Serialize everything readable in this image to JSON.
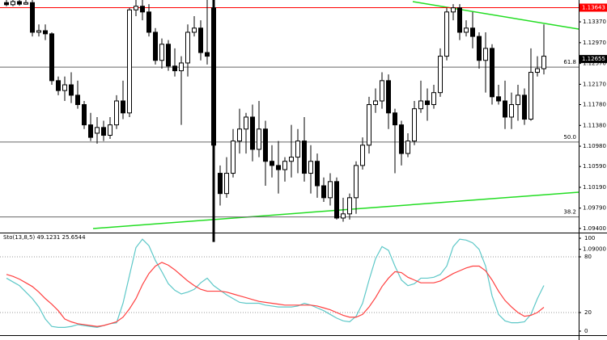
{
  "chart_data": [
    {
      "type": "candlestick",
      "ohlc": [
        [
          1.1374,
          1.1379,
          1.1367,
          1.137
        ],
        [
          1.137,
          1.1379,
          1.1367,
          1.1376
        ],
        [
          1.1376,
          1.1379,
          1.1368,
          1.1371
        ],
        [
          1.1371,
          1.1379,
          1.137,
          1.1374
        ],
        [
          1.1374,
          1.1379,
          1.1309,
          1.1317
        ],
        [
          1.1317,
          1.1332,
          1.1309,
          1.132
        ],
        [
          1.132,
          1.1332,
          1.1302,
          1.1314
        ],
        [
          1.1314,
          1.1317,
          1.1216,
          1.1224
        ],
        [
          1.1224,
          1.1232,
          1.1196,
          1.1205
        ],
        [
          1.1205,
          1.1232,
          1.1185,
          1.1216
        ],
        [
          1.1216,
          1.124,
          1.1181,
          1.1196
        ],
        [
          1.1196,
          1.1224,
          1.117,
          1.1178
        ],
        [
          1.1178,
          1.1185,
          1.1131,
          1.1139
        ],
        [
          1.1139,
          1.1162,
          1.1108,
          1.1115
        ],
        [
          1.1123,
          1.1154,
          1.1103,
          1.1134
        ],
        [
          1.1134,
          1.1147,
          1.1108,
          1.1119
        ],
        [
          1.1119,
          1.1154,
          1.1112,
          1.1139
        ],
        [
          1.1139,
          1.1196,
          1.1131,
          1.1185
        ],
        [
          1.1185,
          1.1224,
          1.115,
          1.1162
        ],
        [
          1.1162,
          1.1364,
          1.1154,
          1.136
        ],
        [
          1.136,
          1.1379,
          1.1348,
          1.1367
        ],
        [
          1.1367,
          1.1379,
          1.134,
          1.1356
        ],
        [
          1.1356,
          1.1371,
          1.1309,
          1.1317
        ],
        [
          1.1317,
          1.1325,
          1.1255,
          1.1263
        ],
        [
          1.1263,
          1.1305,
          1.1247,
          1.1294
        ],
        [
          1.1294,
          1.1302,
          1.1243,
          1.1252
        ],
        [
          1.1252,
          1.1286,
          1.1232,
          1.1243
        ],
        [
          1.1243,
          1.1271,
          1.1139,
          1.1258
        ],
        [
          1.1258,
          1.1332,
          1.1232,
          1.1317
        ],
        [
          1.1317,
          1.1348,
          1.1309,
          1.1325
        ],
        [
          1.1325,
          1.134,
          1.1263,
          1.1278
        ],
        [
          1.1278,
          1.1379,
          1.1255,
          1.1271
        ],
        [
          1.1364,
          1.1379,
          1.0914,
          1.11
        ],
        [
          1.1046,
          1.1061,
          1.0984,
          1.1007
        ],
        [
          1.1007,
          1.1077,
          1.0999,
          1.1046
        ],
        [
          1.1046,
          1.1131,
          1.1038,
          1.1108
        ],
        [
          1.1108,
          1.117,
          1.1084,
          1.1131
        ],
        [
          1.1131,
          1.1162,
          1.1084,
          1.1154
        ],
        [
          1.1154,
          1.1178,
          1.1069,
          1.1092
        ],
        [
          1.1092,
          1.1185,
          1.1077,
          1.1131
        ],
        [
          1.1131,
          1.1147,
          1.1022,
          1.1069
        ],
        [
          1.1069,
          1.11,
          1.1038,
          1.1061
        ],
        [
          1.1061,
          1.1108,
          1.1007,
          1.1053
        ],
        [
          1.1053,
          1.1077,
          1.103,
          1.1069
        ],
        [
          1.1069,
          1.1139,
          1.1038,
          1.1077
        ],
        [
          1.1077,
          1.1131,
          1.1046,
          1.1108
        ],
        [
          1.1108,
          1.1154,
          1.103,
          1.1046
        ],
        [
          1.1046,
          1.11,
          1.1007,
          1.1069
        ],
        [
          1.1069,
          1.1084,
          1.0999,
          1.1022
        ],
        [
          1.1022,
          1.1038,
          1.0991,
          1.0999
        ],
        [
          1.0999,
          1.1046,
          1.0984,
          1.103
        ],
        [
          1.103,
          1.1038,
          1.0957,
          1.096
        ],
        [
          1.096,
          1.0999,
          1.0953,
          1.0968
        ],
        [
          1.0968,
          1.1007,
          1.0957,
          1.0999
        ],
        [
          1.0999,
          1.1069,
          1.0968,
          1.1061
        ],
        [
          1.1061,
          1.1115,
          1.1053,
          1.11
        ],
        [
          1.11,
          1.1193,
          1.1084,
          1.1178
        ],
        [
          1.1178,
          1.1209,
          1.1162,
          1.1185
        ],
        [
          1.1185,
          1.124,
          1.117,
          1.1224
        ],
        [
          1.1224,
          1.1236,
          1.1131,
          1.1162
        ],
        [
          1.1162,
          1.117,
          1.1046,
          1.1139
        ],
        [
          1.1139,
          1.1147,
          1.1061,
          1.1084
        ],
        [
          1.1084,
          1.1123,
          1.1077,
          1.1108
        ],
        [
          1.1108,
          1.1185,
          1.11,
          1.117
        ],
        [
          1.117,
          1.1224,
          1.1162,
          1.1185
        ],
        [
          1.1185,
          1.1209,
          1.1147,
          1.1178
        ],
        [
          1.1178,
          1.1216,
          1.117,
          1.1201
        ],
        [
          1.1201,
          1.1286,
          1.1193,
          1.1271
        ],
        [
          1.1271,
          1.1364,
          1.1263,
          1.1356
        ],
        [
          1.1356,
          1.1371,
          1.134,
          1.1364
        ],
        [
          1.1364,
          1.1371,
          1.1302,
          1.1317
        ],
        [
          1.1317,
          1.134,
          1.1309,
          1.1325
        ],
        [
          1.1325,
          1.1356,
          1.1286,
          1.1309
        ],
        [
          1.1309,
          1.1317,
          1.1247,
          1.1263
        ],
        [
          1.1263,
          1.1317,
          1.1201,
          1.1286
        ],
        [
          1.1286,
          1.1294,
          1.1178,
          1.1193
        ],
        [
          1.1193,
          1.1216,
          1.1178,
          1.1185
        ],
        [
          1.1185,
          1.1224,
          1.1131,
          1.1154
        ],
        [
          1.1154,
          1.1201,
          1.1131,
          1.1178
        ],
        [
          1.1178,
          1.1216,
          1.1147,
          1.1196
        ],
        [
          1.1196,
          1.1209,
          1.1139,
          1.115
        ],
        [
          1.115,
          1.1286,
          1.1147,
          1.124
        ],
        [
          1.124,
          1.1271,
          1.1232,
          1.1247
        ],
        [
          1.1247,
          1.1332,
          1.1236,
          1.1271
        ]
      ],
      "up_color": "#ffffff",
      "down_color": "#000000",
      "ylim": [
        1.0932,
        1.1379
      ],
      "yticks": [
        {
          "value": 1.1337,
          "label": "1.13370"
        },
        {
          "value": 1.1297,
          "label": "1.12970"
        },
        {
          "value": 1.1257,
          "label": "1.12570"
        },
        {
          "value": 1.1217,
          "label": "1.12170"
        },
        {
          "value": 1.1178,
          "label": "1.11780"
        },
        {
          "value": 1.1138,
          "label": "1.11380"
        },
        {
          "value": 1.1098,
          "label": "1.10980"
        },
        {
          "value": 1.1059,
          "label": "1.10590"
        },
        {
          "value": 1.1019,
          "label": "1.10190"
        },
        {
          "value": 1.0979,
          "label": "1.09790"
        },
        {
          "value": 1.094,
          "label": "1.09400"
        },
        {
          "value": 1.09,
          "label": "1.09000"
        }
      ],
      "levels": [
        {
          "label": "61.8",
          "value": 1.125
        },
        {
          "label": "50.0",
          "value": 1.1106
        },
        {
          "label": "38.2",
          "value": 1.0962
        }
      ],
      "marked_price": 1.13643,
      "marked_color": "#ff0000",
      "last_price": 1.12655
    },
    {
      "type": "line",
      "title": "Sto(13,8,5)",
      "series": [
        {
          "color": "#5ec8c8",
          "values": [
            57,
            53,
            49,
            42,
            35,
            26,
            13,
            5,
            4,
            4,
            5,
            7,
            6,
            5,
            4,
            6,
            8,
            9,
            30,
            60,
            90,
            99,
            92,
            76,
            64,
            51,
            44,
            40,
            42,
            45,
            52,
            57,
            49,
            44,
            39,
            35,
            31,
            30,
            30,
            30,
            28,
            27,
            26,
            26,
            26,
            27,
            30,
            28,
            25,
            22,
            18,
            14,
            11,
            10,
            16,
            30,
            55,
            78,
            91,
            87,
            70,
            55,
            49,
            51,
            57,
            57,
            58,
            61,
            70,
            91,
            99,
            98,
            95,
            88,
            70,
            38,
            18,
            11,
            9,
            9,
            10,
            18,
            35,
            49.1231
          ]
        },
        {
          "color": "#ff4040",
          "values": [
            61,
            59,
            56,
            52,
            48,
            42,
            35,
            29,
            22,
            13,
            10,
            8,
            7,
            6,
            5,
            6,
            8,
            10,
            15,
            24,
            35,
            50,
            62,
            70,
            74,
            71,
            66,
            60,
            54,
            49,
            45,
            43,
            43,
            43,
            42,
            40,
            38,
            36,
            34,
            32,
            31,
            30,
            29,
            28,
            28,
            28,
            28,
            28,
            27,
            25,
            23,
            20,
            17,
            15,
            15,
            18,
            26,
            36,
            48,
            57,
            64,
            63,
            58,
            55,
            52,
            52,
            52,
            54,
            58,
            62,
            65,
            68,
            70,
            70,
            65,
            55,
            43,
            33,
            26,
            20,
            16,
            17,
            20,
            25.6544
          ]
        }
      ],
      "ylim": [
        0,
        100
      ],
      "yticks": [
        0,
        20,
        80,
        100
      ],
      "levels": [
        20,
        80
      ]
    }
  ]
}
